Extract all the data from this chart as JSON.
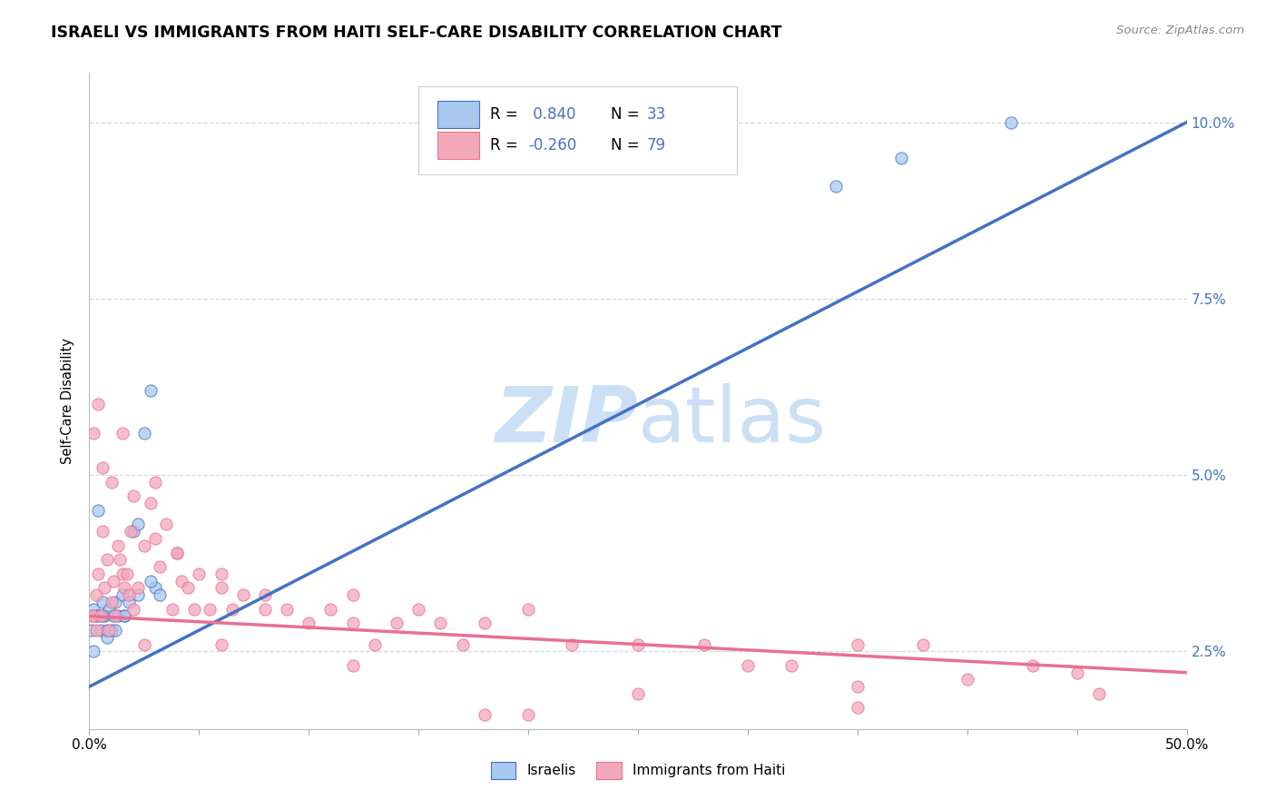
{
  "title": "ISRAELI VS IMMIGRANTS FROM HAITI SELF-CARE DISABILITY CORRELATION CHART",
  "source": "Source: ZipAtlas.com",
  "ylabel": "Self-Care Disability",
  "xlim": [
    0.0,
    0.5
  ],
  "ylim": [
    0.014,
    0.107
  ],
  "xticks": [
    0.0,
    0.05,
    0.1,
    0.15,
    0.2,
    0.25,
    0.3,
    0.35,
    0.4,
    0.45,
    0.5
  ],
  "xticklabels": [
    "0.0%",
    "",
    "",
    "",
    "",
    "",
    "",
    "",
    "",
    "",
    "50.0%"
  ],
  "yticks": [
    0.025,
    0.05,
    0.075,
    0.1
  ],
  "yticklabels": [
    "2.5%",
    "5.0%",
    "7.5%",
    "10.0%"
  ],
  "legend_r1": "R =  0.840",
  "legend_n1": "N = 33",
  "legend_r2": "R = -0.260",
  "legend_n2": "N = 79",
  "color_israeli": "#a8c8f0",
  "color_haiti": "#f4a8bc",
  "color_israeli_line": "#4472c4",
  "color_haiti_line": "#e87090",
  "color_rval": "#4472c4",
  "color_nval": "#4472c4",
  "watermark_color": "#cce0f5",
  "background_color": "#ffffff",
  "grid_color": "#d0d8e8",
  "isr_line_x": [
    0.0,
    0.5
  ],
  "isr_line_y": [
    0.02,
    0.1
  ],
  "hai_line_x": [
    0.0,
    0.5
  ],
  "hai_line_y": [
    0.03,
    0.022
  ],
  "israelis_x": [
    0.001,
    0.002,
    0.002,
    0.003,
    0.004,
    0.005,
    0.006,
    0.007,
    0.008,
    0.009,
    0.01,
    0.011,
    0.012,
    0.013,
    0.015,
    0.016,
    0.018,
    0.02,
    0.022,
    0.025,
    0.028,
    0.03,
    0.032,
    0.004,
    0.006,
    0.008,
    0.012,
    0.016,
    0.022,
    0.028,
    0.34,
    0.37,
    0.42
  ],
  "israelis_y": [
    0.028,
    0.031,
    0.025,
    0.03,
    0.03,
    0.028,
    0.032,
    0.03,
    0.027,
    0.031,
    0.028,
    0.03,
    0.032,
    0.03,
    0.033,
    0.03,
    0.032,
    0.042,
    0.043,
    0.056,
    0.062,
    0.034,
    0.033,
    0.045,
    0.03,
    0.028,
    0.028,
    0.03,
    0.033,
    0.035,
    0.091,
    0.095,
    0.1
  ],
  "haiti_x": [
    0.001,
    0.002,
    0.003,
    0.003,
    0.004,
    0.005,
    0.006,
    0.007,
    0.008,
    0.009,
    0.01,
    0.011,
    0.012,
    0.013,
    0.014,
    0.015,
    0.016,
    0.017,
    0.018,
    0.019,
    0.02,
    0.022,
    0.025,
    0.028,
    0.03,
    0.032,
    0.035,
    0.038,
    0.04,
    0.042,
    0.045,
    0.048,
    0.05,
    0.055,
    0.06,
    0.065,
    0.07,
    0.08,
    0.09,
    0.1,
    0.11,
    0.12,
    0.13,
    0.14,
    0.15,
    0.16,
    0.17,
    0.18,
    0.2,
    0.22,
    0.25,
    0.28,
    0.3,
    0.32,
    0.35,
    0.38,
    0.4,
    0.43,
    0.46,
    0.002,
    0.004,
    0.006,
    0.01,
    0.015,
    0.02,
    0.03,
    0.04,
    0.06,
    0.08,
    0.12,
    0.18,
    0.25,
    0.35,
    0.45,
    0.025,
    0.06,
    0.12,
    0.2,
    0.35
  ],
  "haiti_y": [
    0.03,
    0.03,
    0.033,
    0.028,
    0.036,
    0.03,
    0.042,
    0.034,
    0.038,
    0.028,
    0.032,
    0.035,
    0.03,
    0.04,
    0.038,
    0.036,
    0.034,
    0.036,
    0.033,
    0.042,
    0.031,
    0.034,
    0.04,
    0.046,
    0.041,
    0.037,
    0.043,
    0.031,
    0.039,
    0.035,
    0.034,
    0.031,
    0.036,
    0.031,
    0.036,
    0.031,
    0.033,
    0.031,
    0.031,
    0.029,
    0.031,
    0.029,
    0.026,
    0.029,
    0.031,
    0.029,
    0.026,
    0.029,
    0.031,
    0.026,
    0.026,
    0.026,
    0.023,
    0.023,
    0.026,
    0.026,
    0.021,
    0.023,
    0.019,
    0.056,
    0.06,
    0.051,
    0.049,
    0.056,
    0.047,
    0.049,
    0.039,
    0.034,
    0.033,
    0.023,
    0.016,
    0.019,
    0.017,
    0.022,
    0.026,
    0.026,
    0.033,
    0.016,
    0.02
  ]
}
